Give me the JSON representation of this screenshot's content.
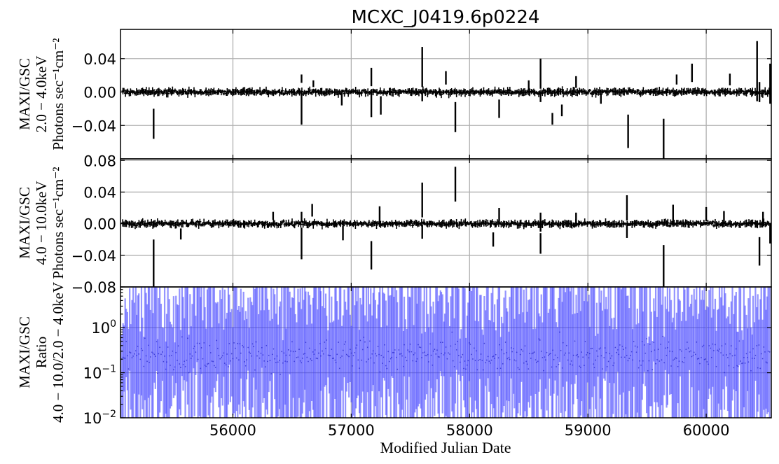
{
  "chart_data": {
    "type": "scatter",
    "title": "MCXC_J0419.6p0224",
    "xlabel": "Modified Julian Date",
    "xlim": [
      55050,
      60550
    ],
    "xticks": [
      56000,
      57000,
      58000,
      59000,
      60000
    ],
    "panels": [
      {
        "name": "soft",
        "ylabel_lines": [
          "MAXI/GSC",
          "2.0 − 4.0keV",
          "Photons sec⁻¹cm⁻²"
        ],
        "ylim": [
          -0.08,
          0.075
        ],
        "yticks": [
          0.04,
          0.0,
          -0.04
        ],
        "ytick_labels": [
          "0.04",
          "0.00",
          "−0.04"
        ],
        "grid": true,
        "color": "#000000",
        "points": [
          {
            "x": 55330,
            "y": -0.038,
            "err": 0.018
          },
          {
            "x": 56580,
            "y": -0.02,
            "err": 0.019
          },
          {
            "x": 56580,
            "y": 0.016,
            "err": 0.005
          },
          {
            "x": 56680,
            "y": 0.01,
            "err": 0.004
          },
          {
            "x": 56920,
            "y": -0.008,
            "err": 0.008
          },
          {
            "x": 57170,
            "y": 0.018,
            "err": 0.011
          },
          {
            "x": 57170,
            "y": -0.016,
            "err": 0.014
          },
          {
            "x": 57250,
            "y": -0.016,
            "err": 0.011
          },
          {
            "x": 57600,
            "y": 0.03,
            "err": 0.024
          },
          {
            "x": 57600,
            "y": -0.006,
            "err": 0.005
          },
          {
            "x": 57800,
            "y": 0.017,
            "err": 0.008
          },
          {
            "x": 57880,
            "y": -0.03,
            "err": 0.018
          },
          {
            "x": 58250,
            "y": -0.02,
            "err": 0.011
          },
          {
            "x": 58500,
            "y": 0.008,
            "err": 0.006
          },
          {
            "x": 58600,
            "y": 0.022,
            "err": 0.018
          },
          {
            "x": 58600,
            "y": -0.006,
            "err": 0.006
          },
          {
            "x": 58700,
            "y": -0.032,
            "err": 0.007
          },
          {
            "x": 58780,
            "y": -0.022,
            "err": 0.007
          },
          {
            "x": 58900,
            "y": 0.012,
            "err": 0.007
          },
          {
            "x": 59110,
            "y": -0.008,
            "err": 0.006
          },
          {
            "x": 59340,
            "y": -0.047,
            "err": 0.02
          },
          {
            "x": 59640,
            "y": -0.057,
            "err": 0.025
          },
          {
            "x": 59750,
            "y": 0.015,
            "err": 0.006
          },
          {
            "x": 59880,
            "y": 0.023,
            "err": 0.011
          },
          {
            "x": 60200,
            "y": 0.015,
            "err": 0.007
          },
          {
            "x": 60430,
            "y": 0.025,
            "err": 0.036
          },
          {
            "x": 60450,
            "y": 0.0,
            "err": 0.012
          },
          {
            "x": 60540,
            "y": 0.01,
            "err": 0.024
          }
        ]
      },
      {
        "name": "hard",
        "ylabel_lines": [
          "MAXI/GSC",
          "4.0 − 10.0keV",
          "Photons sec⁻¹cm⁻²"
        ],
        "ylim": [
          -0.08,
          0.082
        ],
        "yticks": [
          0.08,
          0.04,
          0.0,
          -0.04,
          -0.08
        ],
        "ytick_labels": [
          "0.08",
          "0.04",
          "0.00",
          "−0.04",
          "−0.08"
        ],
        "grid": true,
        "color": "#000000",
        "points": [
          {
            "x": 55330,
            "y": -0.05,
            "err": 0.03
          },
          {
            "x": 55560,
            "y": -0.013,
            "err": 0.007
          },
          {
            "x": 56340,
            "y": 0.01,
            "err": 0.005
          },
          {
            "x": 56580,
            "y": -0.025,
            "err": 0.02
          },
          {
            "x": 56580,
            "y": 0.009,
            "err": 0.006
          },
          {
            "x": 56670,
            "y": 0.017,
            "err": 0.008
          },
          {
            "x": 56930,
            "y": -0.012,
            "err": 0.009
          },
          {
            "x": 57170,
            "y": -0.04,
            "err": 0.018
          },
          {
            "x": 57240,
            "y": 0.01,
            "err": 0.012
          },
          {
            "x": 57600,
            "y": 0.03,
            "err": 0.022
          },
          {
            "x": 57600,
            "y": -0.01,
            "err": 0.009
          },
          {
            "x": 57880,
            "y": 0.05,
            "err": 0.022
          },
          {
            "x": 58200,
            "y": -0.02,
            "err": 0.009
          },
          {
            "x": 58250,
            "y": 0.01,
            "err": 0.01
          },
          {
            "x": 58600,
            "y": 0.002,
            "err": 0.012
          },
          {
            "x": 58600,
            "y": -0.025,
            "err": 0.013
          },
          {
            "x": 58900,
            "y": 0.006,
            "err": 0.008
          },
          {
            "x": 59330,
            "y": 0.02,
            "err": 0.016
          },
          {
            "x": 59330,
            "y": -0.01,
            "err": 0.008
          },
          {
            "x": 59640,
            "y": -0.055,
            "err": 0.028
          },
          {
            "x": 59720,
            "y": 0.012,
            "err": 0.012
          },
          {
            "x": 60000,
            "y": 0.012,
            "err": 0.009
          },
          {
            "x": 60150,
            "y": 0.006,
            "err": 0.01
          },
          {
            "x": 60450,
            "y": -0.035,
            "err": 0.018
          },
          {
            "x": 60480,
            "y": 0.006,
            "err": 0.009
          },
          {
            "x": 60540,
            "y": -0.012,
            "err": 0.013
          }
        ]
      },
      {
        "name": "ratio",
        "ylabel_lines": [
          "MAXI/GSC",
          "Ratio",
          "4.0 − 10.0/2.0 − 4.0keV"
        ],
        "yscale": "log",
        "ylim": [
          0.01,
          8
        ],
        "yticks": [
          1,
          0.1,
          0.01
        ],
        "ytick_labels": [
          [
            "10",
            "0"
          ],
          [
            "10",
            "−1"
          ],
          [
            "10",
            "−2"
          ]
        ],
        "grid": true,
        "color": "#3d3dff",
        "note": "dense field of log-ratio points with large error bars spanning most of the axis range"
      }
    ]
  }
}
